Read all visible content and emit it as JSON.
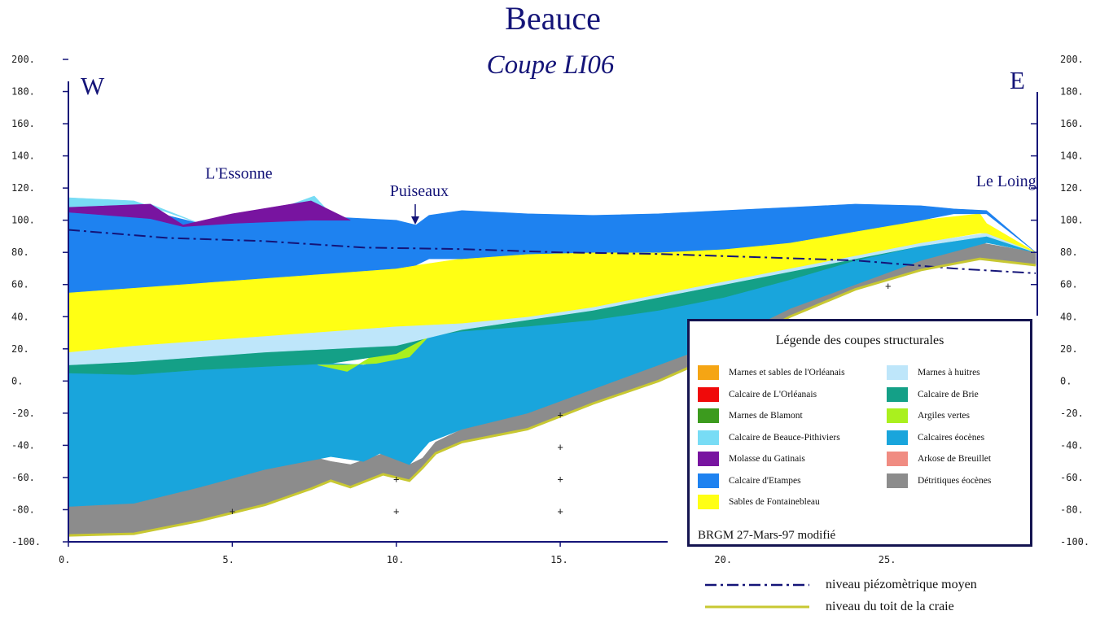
{
  "title": "Beauce",
  "subtitle": "Coupe LI06",
  "orientation": {
    "west": "W",
    "east": "E"
  },
  "place_labels": [
    {
      "name": "L'Essonne",
      "x_km": 5.2,
      "elevation_m": 126
    },
    {
      "name": "Puiseaux",
      "x_km": 10.7,
      "elevation_m": 115
    },
    {
      "name": "Le Loing",
      "x_km": 28.6,
      "elevation_m": 121
    }
  ],
  "colors": {
    "title": "#141478",
    "axis": "#141478",
    "piezometric": "#141478",
    "chalk_top": "#c8c832"
  },
  "chart_data": {
    "type": "area",
    "title": "Beauce — Coupe LI06",
    "xlabel": "",
    "ylabel": "",
    "xlim": [
      0,
      29.5
    ],
    "ylim": [
      -100,
      200
    ],
    "x_ticks": [
      "0.",
      "5.",
      "10.",
      "15.",
      "20.",
      "25."
    ],
    "x_tick_values": [
      0,
      5,
      10,
      15,
      20,
      25
    ],
    "y_ticks": [
      "200.",
      "180.",
      "160.",
      "140.",
      "120.",
      "100.",
      "80.",
      "60.",
      "40.",
      "20.",
      "0.",
      "-20.",
      "-40.",
      "-60.",
      "-80.",
      "-100."
    ],
    "y_tick_values": [
      200,
      180,
      160,
      140,
      120,
      100,
      80,
      60,
      40,
      20,
      0,
      -20,
      -40,
      -60,
      -80,
      -100
    ],
    "layers": [
      {
        "name": "Détritiques éocènes",
        "color": "#8c8c8c",
        "x": [
          0,
          2,
          4,
          6,
          7.4,
          8,
          8.6,
          9.6,
          10.4,
          10.8,
          11.2,
          12,
          14,
          16,
          18,
          20,
          22,
          24,
          26,
          27.8,
          29.5
        ],
        "top": [
          -78,
          -76,
          -66,
          -55,
          -47,
          -50,
          -52,
          -45,
          -52,
          -48,
          -38,
          -30,
          -20,
          -5,
          10,
          25,
          45,
          60,
          75,
          86,
          80
        ],
        "bottom": [
          -96,
          -95,
          -87,
          -77,
          -67,
          -62,
          -66,
          -58,
          -62,
          -54,
          -45,
          -38,
          -30,
          -14,
          0,
          18,
          40,
          57,
          69,
          76,
          72
        ]
      },
      {
        "name": "Calcaires éocènes",
        "color": "#19a5dc",
        "x": [
          0,
          2,
          4,
          6,
          8,
          9,
          9.5,
          10.4,
          11,
          12,
          14,
          16,
          18,
          20,
          22,
          24,
          26,
          28,
          29.5
        ],
        "top": [
          5,
          4,
          7,
          9,
          11,
          10,
          12,
          17,
          28,
          31,
          34,
          38,
          44,
          52,
          63,
          75,
          84,
          90,
          80
        ],
        "bottom": [
          -78,
          -76,
          -66,
          -55,
          -47,
          -50,
          -45,
          -52,
          -38,
          -30,
          -20,
          -5,
          10,
          25,
          45,
          60,
          75,
          86,
          80
        ]
      },
      {
        "name": "Argiles vertes",
        "color": "#aaf01e",
        "x": [
          7.6,
          8.5,
          9.4,
          10.4,
          11,
          10.4,
          9.4,
          8.5,
          7.6
        ],
        "y": [
          10,
          10,
          11,
          15,
          28,
          22,
          17,
          6,
          10
        ]
      },
      {
        "name": "Calcaire de Brie",
        "color": "#14a087",
        "x": [
          0,
          2,
          4,
          6,
          8,
          10,
          11,
          12,
          14,
          16,
          18,
          20,
          22,
          24,
          26,
          28,
          29.5
        ],
        "top": [
          10,
          12,
          15,
          18,
          20,
          22,
          28,
          32,
          38,
          44,
          52,
          60,
          68,
          76,
          84,
          90,
          80
        ],
        "bottom": [
          5,
          4,
          7,
          9,
          11,
          17,
          28,
          31,
          34,
          38,
          44,
          52,
          63,
          75,
          84,
          90,
          80
        ]
      },
      {
        "name": "Marnes à huitres",
        "color": "#bee6fa",
        "x": [
          0,
          2,
          4,
          6,
          8,
          10,
          12,
          14,
          16,
          18,
          20,
          22,
          24,
          26,
          28,
          29.5
        ],
        "top": [
          18,
          22,
          25,
          28,
          31,
          34,
          36,
          40,
          46,
          54,
          62,
          70,
          78,
          86,
          92,
          80
        ],
        "bottom": [
          10,
          12,
          15,
          18,
          20,
          22,
          32,
          38,
          44,
          52,
          60,
          68,
          76,
          84,
          90,
          80
        ]
      },
      {
        "name": "Sables de Fontainebleau",
        "color": "#ffff14",
        "x": [
          0,
          2,
          4,
          6,
          8,
          10,
          12,
          14,
          16,
          18,
          20,
          22,
          24,
          26,
          27.8,
          28,
          29.5
        ],
        "top": [
          55,
          58,
          61,
          64,
          67,
          70,
          76,
          79,
          80,
          80,
          82,
          86,
          93,
          100,
          104,
          98,
          80
        ],
        "bottom": [
          18,
          22,
          25,
          28,
          31,
          34,
          36,
          40,
          46,
          54,
          62,
          70,
          78,
          86,
          92,
          92,
          80
        ]
      },
      {
        "name": "Calcaire d'Etampes",
        "color": "#1e82f0",
        "x": [
          0,
          2,
          4,
          6,
          8,
          10,
          10.6,
          11,
          12,
          14,
          16,
          18,
          20,
          22,
          24,
          26,
          27,
          28,
          29.5
        ],
        "top": [
          108,
          108,
          98,
          103,
          102,
          100,
          97,
          103,
          106,
          104,
          103,
          104,
          106,
          108,
          110,
          109,
          107,
          106,
          80
        ],
        "bottom": [
          55,
          58,
          61,
          64,
          67,
          70,
          72,
          76,
          76,
          79,
          80,
          80,
          82,
          86,
          93,
          100,
          104,
          104,
          80
        ]
      },
      {
        "name": "Calcaire de Beauce-Pithiviers",
        "color": "#78dcf5",
        "x": [
          0,
          2,
          4,
          6,
          7.5,
          8,
          6.2,
          4,
          2.5,
          0
        ],
        "y": [
          114,
          112,
          98,
          104,
          115,
          104,
          103,
          98,
          110,
          108
        ]
      },
      {
        "name": "Molasse du Gatinais",
        "color": "#7814a0",
        "x": [
          0,
          2.5,
          3.5,
          5,
          7.4,
          8.6,
          7.4,
          5,
          3.5,
          2.5,
          0
        ],
        "y": [
          108,
          110,
          97,
          104,
          112,
          100,
          100,
          98,
          96,
          101,
          105
        ]
      }
    ],
    "series": [
      {
        "name": "niveau piézomètrique moyen",
        "style": "dash-dot",
        "color": "#141478",
        "x": [
          0,
          3,
          6,
          9,
          12,
          15,
          18,
          21,
          24,
          27,
          29.5
        ],
        "y": [
          94,
          89,
          87,
          83,
          82,
          80,
          79,
          77,
          75,
          70,
          67
        ]
      },
      {
        "name": "niveau du toit de la craie",
        "style": "solid",
        "color": "#c8c832",
        "x": [
          0,
          2,
          4,
          6,
          7.4,
          8,
          8.6,
          9.6,
          10.4,
          10.8,
          11.2,
          12,
          14,
          16,
          18,
          20,
          22,
          24,
          26,
          27.8,
          29.5
        ],
        "y": [
          -96,
          -95,
          -87,
          -77,
          -67,
          -62,
          -66,
          -58,
          -62,
          -54,
          -45,
          -38,
          -30,
          -14,
          0,
          18,
          40,
          57,
          69,
          76,
          72
        ]
      }
    ],
    "annotations": [
      {
        "text": "+",
        "x_km": 5,
        "elevation_m": -81
      },
      {
        "text": "+",
        "x_km": 10,
        "elevation_m": -61
      },
      {
        "text": "+",
        "x_km": 10,
        "elevation_m": -81
      },
      {
        "text": "+",
        "x_km": 15,
        "elevation_m": -21
      },
      {
        "text": "+",
        "x_km": 15,
        "elevation_m": -41
      },
      {
        "text": "+",
        "x_km": 15,
        "elevation_m": -61
      },
      {
        "text": "+",
        "x_km": 15,
        "elevation_m": -81
      },
      {
        "text": "+",
        "x_km": 25,
        "elevation_m": 59
      }
    ]
  },
  "legend": {
    "title": "Légende des coupes structurales",
    "left_items": [
      {
        "label": "Marnes et sables de l'Orléanais",
        "color": "#f5a514"
      },
      {
        "label": "Calcaire de L'Orléanais",
        "color": "#f00a0a"
      },
      {
        "label": "Marnes de Blamont",
        "color": "#3c9b1e"
      },
      {
        "label": "Calcaire de Beauce-Pithiviers",
        "color": "#78dcf5"
      },
      {
        "label": "Molasse du Gatinais",
        "color": "#7814a0"
      },
      {
        "label": "Calcaire d'Etampes",
        "color": "#1e82f0"
      },
      {
        "label": "Sables de Fontainebleau",
        "color": "#ffff14"
      }
    ],
    "right_items": [
      {
        "label": "Marnes à huitres",
        "color": "#bee6fa"
      },
      {
        "label": "Calcaire de Brie",
        "color": "#14a087"
      },
      {
        "label": "Argiles vertes",
        "color": "#aaf01e"
      },
      {
        "label": "Calcaires éocènes",
        "color": "#19a5dc"
      },
      {
        "label": "Arkose de Breuillet",
        "color": "#f08c82"
      },
      {
        "label": "Détritiques éocènes",
        "color": "#8c8c8c"
      }
    ],
    "credit": "BRGM 27-Mars-97 modifié"
  },
  "line_keys": [
    {
      "label": "niveau piézomètrique moyen",
      "style": "dash-dot",
      "color": "#141478"
    },
    {
      "label": "niveau du toit de la craie",
      "style": "solid",
      "color": "#c8c832"
    }
  ]
}
